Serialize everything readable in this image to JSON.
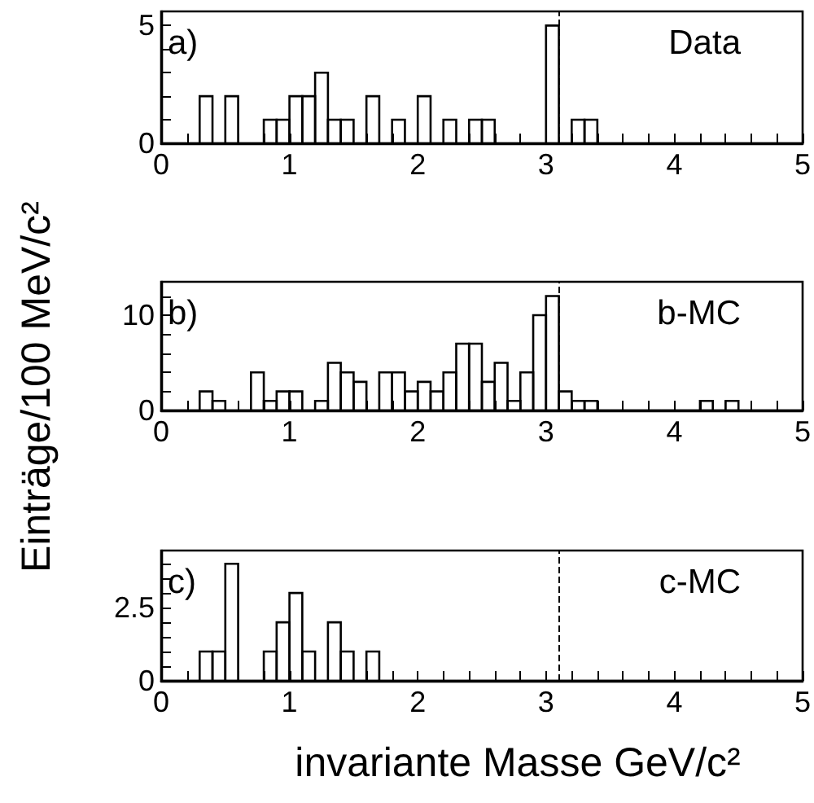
{
  "chart_data": [
    {
      "type": "histogram",
      "annotations": [
        "a)",
        "Data"
      ],
      "bins": [
        0,
        0.1,
        0.2,
        0.3,
        0.4,
        0.5,
        0.6,
        0.7,
        0.8,
        0.9,
        1,
        1.1,
        1.2,
        1.3,
        1.4,
        1.5,
        1.6,
        1.7,
        1.8,
        1.9,
        2,
        2.1,
        2.2,
        2.3,
        2.4,
        2.5,
        2.6,
        2.7,
        2.8,
        2.9,
        3,
        3.1,
        3.2,
        3.3,
        3.4,
        3.5,
        3.6,
        3.7,
        3.8,
        3.9,
        4,
        4.1,
        4.2,
        4.3,
        4.4,
        4.5,
        4.6,
        4.7,
        4.8,
        4.9,
        5
      ],
      "values": [
        0,
        0,
        0,
        2,
        0,
        2,
        0,
        0,
        1,
        1,
        2,
        2,
        3,
        1,
        1,
        0,
        2,
        0,
        1,
        0,
        2,
        0,
        1,
        0,
        1,
        1,
        0,
        0,
        0,
        0,
        5,
        0,
        1,
        1,
        0,
        0,
        0,
        0,
        0,
        0,
        0,
        0,
        0,
        0,
        0,
        0,
        0,
        0,
        0,
        0
      ],
      "color": "#000000",
      "xlim": [
        0,
        5
      ],
      "xticks": [
        0,
        {
          "value": 0.2,
          "label": null
        },
        {
          "value": 0.4,
          "label": null
        },
        {
          "value": 0.6,
          "label": null
        },
        {
          "value": 0.8,
          "label": null
        },
        1,
        {
          "value": 1.2,
          "label": null
        },
        {
          "value": 1.4,
          "label": null
        },
        {
          "value": 1.6,
          "label": null
        },
        {
          "value": 1.8,
          "label": null
        },
        2,
        {
          "value": 2.2,
          "label": null
        },
        {
          "value": 2.4,
          "label": null
        },
        {
          "value": 2.6,
          "label": null
        },
        {
          "value": 2.8,
          "label": null
        },
        3,
        {
          "value": 3.2,
          "label": null
        },
        {
          "value": 3.4,
          "label": null
        },
        {
          "value": 3.6,
          "label": null
        },
        {
          "value": 3.8,
          "label": null
        },
        4,
        {
          "value": 4.2,
          "label": null
        },
        {
          "value": 4.4,
          "label": null
        },
        {
          "value": 4.6,
          "label": null
        },
        {
          "value": 4.8,
          "label": null
        },
        5
      ],
      "ylim": [
        0,
        5.6
      ],
      "yticks": [
        0,
        {
          "value": 1,
          "label": null
        },
        {
          "value": 2,
          "label": null
        },
        {
          "value": 3,
          "label": null
        },
        {
          "value": 4,
          "label": null
        },
        5
      ],
      "ref_lines": [
        {
          "axis": "x",
          "value": 3.097,
          "line_style": "dashed",
          "color": "#000000"
        }
      ]
    },
    {
      "type": "histogram",
      "ylabel": "Einträge/100 MeV/c²",
      "annotations": [
        "b)",
        "b-MC"
      ],
      "bins": [
        0,
        0.1,
        0.2,
        0.3,
        0.4,
        0.5,
        0.6,
        0.7,
        0.8,
        0.9,
        1,
        1.1,
        1.2,
        1.3,
        1.4,
        1.5,
        1.6,
        1.7,
        1.8,
        1.9,
        2,
        2.1,
        2.2,
        2.3,
        2.4,
        2.5,
        2.6,
        2.7,
        2.8,
        2.9,
        3,
        3.1,
        3.2,
        3.3,
        3.4,
        3.5,
        3.6,
        3.7,
        3.8,
        3.9,
        4,
        4.1,
        4.2,
        4.3,
        4.4,
        4.5,
        4.6,
        4.7,
        4.8,
        4.9,
        5
      ],
      "values": [
        0,
        0,
        0,
        2,
        1,
        0,
        0,
        4,
        1,
        2,
        2,
        0,
        1,
        5,
        4,
        3,
        0,
        4,
        4,
        2,
        3,
        2,
        4,
        7,
        7,
        3,
        5,
        1,
        4,
        10,
        12,
        2,
        1,
        1,
        0,
        0,
        0,
        0,
        0,
        0,
        0,
        0,
        1,
        0,
        1,
        0,
        0,
        0,
        0,
        0
      ],
      "color": "#000000",
      "xlim": [
        0,
        5
      ],
      "xticks": [
        0,
        {
          "value": 0.2,
          "label": null
        },
        {
          "value": 0.4,
          "label": null
        },
        {
          "value": 0.6,
          "label": null
        },
        {
          "value": 0.8,
          "label": null
        },
        1,
        {
          "value": 1.2,
          "label": null
        },
        {
          "value": 1.4,
          "label": null
        },
        {
          "value": 1.6,
          "label": null
        },
        {
          "value": 1.8,
          "label": null
        },
        2,
        {
          "value": 2.2,
          "label": null
        },
        {
          "value": 2.4,
          "label": null
        },
        {
          "value": 2.6,
          "label": null
        },
        {
          "value": 2.8,
          "label": null
        },
        3,
        {
          "value": 3.2,
          "label": null
        },
        {
          "value": 3.4,
          "label": null
        },
        {
          "value": 3.6,
          "label": null
        },
        {
          "value": 3.8,
          "label": null
        },
        4,
        {
          "value": 4.2,
          "label": null
        },
        {
          "value": 4.4,
          "label": null
        },
        {
          "value": 4.6,
          "label": null
        },
        {
          "value": 4.8,
          "label": null
        },
        5
      ],
      "ylim": [
        0,
        13.5
      ],
      "yticks": [
        0,
        {
          "value": 2,
          "label": null
        },
        {
          "value": 4,
          "label": null
        },
        {
          "value": 6,
          "label": null
        },
        {
          "value": 8,
          "label": null
        },
        10,
        {
          "value": 12,
          "label": null
        }
      ],
      "ref_lines": [
        {
          "axis": "x",
          "value": 3.097,
          "line_style": "dashed",
          "color": "#000000"
        }
      ]
    },
    {
      "type": "histogram",
      "xlabel": "invariante Masse GeV/c²",
      "annotations": [
        "c)",
        "c-MC"
      ],
      "bins": [
        0,
        0.1,
        0.2,
        0.3,
        0.4,
        0.5,
        0.6,
        0.7,
        0.8,
        0.9,
        1,
        1.1,
        1.2,
        1.3,
        1.4,
        1.5,
        1.6,
        1.7,
        1.8,
        1.9,
        2,
        2.1,
        2.2,
        2.3,
        2.4,
        2.5,
        2.6,
        2.7,
        2.8,
        2.9,
        3,
        3.1,
        3.2,
        3.3,
        3.4,
        3.5,
        3.6,
        3.7,
        3.8,
        3.9,
        4,
        4.1,
        4.2,
        4.3,
        4.4,
        4.5,
        4.6,
        4.7,
        4.8,
        4.9,
        5
      ],
      "values": [
        0,
        0,
        0,
        1,
        1,
        4,
        0,
        0,
        1,
        2,
        3,
        1,
        0,
        2,
        1,
        0,
        1,
        0,
        0,
        0,
        0,
        0,
        0,
        0,
        0,
        0,
        0,
        0,
        0,
        0,
        0,
        0,
        0,
        0,
        0,
        0,
        0,
        0,
        0,
        0,
        0,
        0,
        0,
        0,
        0,
        0,
        0,
        0,
        0,
        0
      ],
      "color": "#000000",
      "xlim": [
        0,
        5
      ],
      "xticks": [
        0,
        {
          "value": 0.2,
          "label": null
        },
        {
          "value": 0.4,
          "label": null
        },
        {
          "value": 0.6,
          "label": null
        },
        {
          "value": 0.8,
          "label": null
        },
        1,
        {
          "value": 1.2,
          "label": null
        },
        {
          "value": 1.4,
          "label": null
        },
        {
          "value": 1.6,
          "label": null
        },
        {
          "value": 1.8,
          "label": null
        },
        2,
        {
          "value": 2.2,
          "label": null
        },
        {
          "value": 2.4,
          "label": null
        },
        {
          "value": 2.6,
          "label": null
        },
        {
          "value": 2.8,
          "label": null
        },
        3,
        {
          "value": 3.2,
          "label": null
        },
        {
          "value": 3.4,
          "label": null
        },
        {
          "value": 3.6,
          "label": null
        },
        {
          "value": 3.8,
          "label": null
        },
        4,
        {
          "value": 4.2,
          "label": null
        },
        {
          "value": 4.4,
          "label": null
        },
        {
          "value": 4.6,
          "label": null
        },
        {
          "value": 4.8,
          "label": null
        },
        5
      ],
      "ylim": [
        0,
        4.45
      ],
      "yticks": [
        0,
        {
          "value": 0.5,
          "label": null
        },
        {
          "value": 1,
          "label": null
        },
        {
          "value": 1.5,
          "label": null
        },
        {
          "value": 2,
          "label": null
        },
        2.5,
        {
          "value": 3,
          "label": null
        },
        {
          "value": 3.5,
          "label": null
        },
        {
          "value": 4,
          "label": null
        }
      ],
      "ref_lines": [
        {
          "axis": "x",
          "value": 3.097,
          "line_style": "dashed",
          "color": "#000000"
        }
      ]
    }
  ]
}
